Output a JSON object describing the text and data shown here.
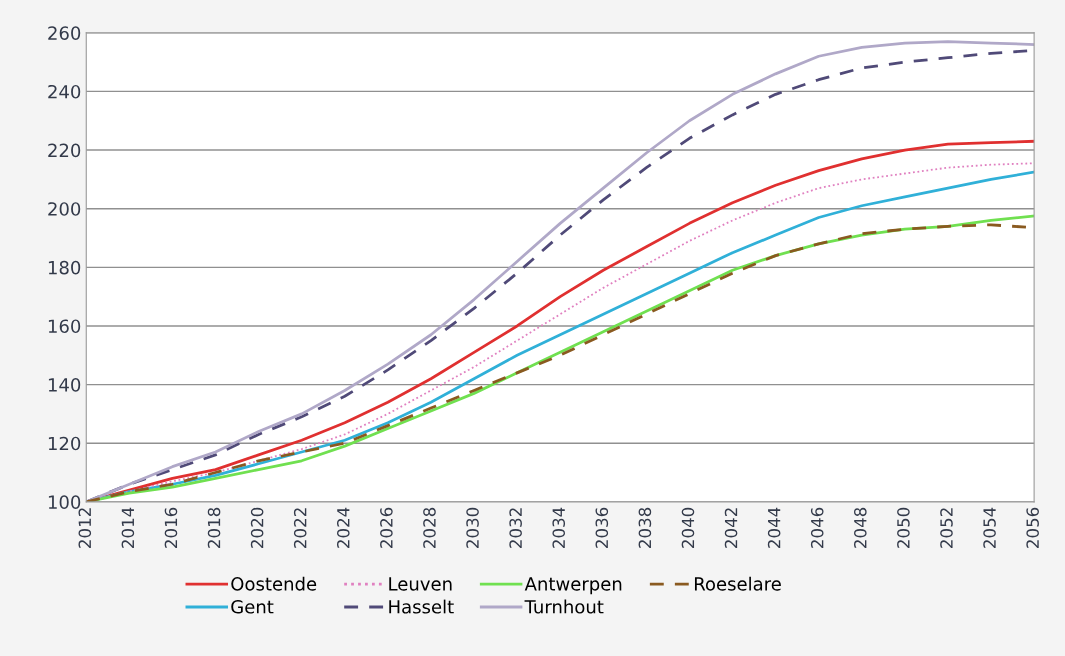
{
  "chart_data": {
    "type": "line",
    "x": [
      2012,
      2014,
      2016,
      2018,
      2020,
      2022,
      2024,
      2026,
      2028,
      2030,
      2032,
      2034,
      2036,
      2038,
      2040,
      2042,
      2044,
      2046,
      2048,
      2050,
      2052,
      2054,
      2056
    ],
    "xlim": [
      2012,
      2056
    ],
    "xticks": [
      2012,
      2014,
      2016,
      2018,
      2020,
      2022,
      2024,
      2026,
      2028,
      2030,
      2032,
      2034,
      2036,
      2038,
      2040,
      2042,
      2044,
      2046,
      2048,
      2050,
      2052,
      2054,
      2056
    ],
    "ylim": [
      100,
      260
    ],
    "yticks": [
      100,
      120,
      140,
      160,
      180,
      200,
      220,
      240,
      260
    ],
    "grid": "y",
    "legend": "bottom",
    "series": [
      {
        "name": "Oostende",
        "color": "#e03030",
        "line_style": "solid",
        "values": [
          100,
          104,
          108,
          111,
          116,
          121,
          127,
          134,
          142,
          151,
          160,
          170,
          179,
          187,
          195,
          202,
          208,
          213,
          217,
          220,
          222,
          222.5,
          223
        ]
      },
      {
        "name": "Gent",
        "color": "#30b0d8",
        "line_style": "solid",
        "values": [
          100,
          103.5,
          106,
          109,
          113,
          117,
          121,
          127,
          134,
          142,
          150,
          157,
          164,
          171,
          178,
          185,
          191,
          197,
          201,
          204,
          207,
          210,
          212.5
        ]
      },
      {
        "name": "Leuven",
        "color": "#e080c0",
        "line_style": "dotted",
        "values": [
          100,
          103.5,
          107,
          110,
          114,
          118,
          123,
          130,
          138,
          146,
          155,
          164,
          173,
          181,
          189,
          196,
          202,
          207,
          210,
          212,
          214,
          215,
          215.5
        ]
      },
      {
        "name": "Hasselt",
        "color": "#504a78",
        "line_style": "dashed",
        "values": [
          100,
          106,
          111,
          116,
          123,
          129,
          136,
          145,
          155,
          166,
          178,
          191,
          203,
          214,
          224,
          232,
          239,
          244,
          248,
          250,
          251.5,
          253,
          254
        ]
      },
      {
        "name": "Antwerpen",
        "color": "#70e050",
        "line_style": "solid",
        "values": [
          100,
          103,
          105,
          108,
          111,
          114,
          119,
          125,
          131,
          137,
          144,
          151,
          158,
          165,
          172,
          179,
          184,
          188,
          191,
          193,
          194,
          196,
          197.5
        ]
      },
      {
        "name": "Turnhout",
        "color": "#b0a8c8",
        "line_style": "solid",
        "values": [
          100,
          106,
          112,
          117,
          124,
          130,
          138,
          147,
          157,
          169,
          182,
          195,
          207,
          219,
          230,
          239,
          246,
          252,
          255,
          256.5,
          257,
          256.5,
          256
        ]
      },
      {
        "name": "Roeselare",
        "color": "#8a5a20",
        "line_style": "dashed",
        "values": [
          100,
          103.5,
          106,
          110,
          114,
          117,
          120,
          126,
          132,
          138,
          144,
          150,
          157,
          164,
          171,
          178,
          184,
          188,
          191.5,
          193,
          194,
          194.5,
          193.5
        ]
      }
    ]
  }
}
